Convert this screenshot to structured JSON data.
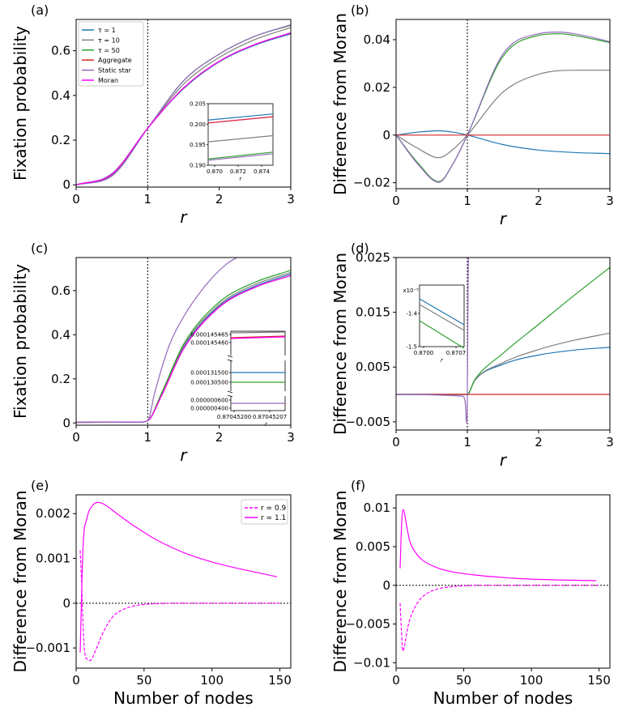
{
  "chart_data": [
    {
      "panel": "(a)",
      "type": "line",
      "xlabel": "r",
      "ylabel": "Fixation probability",
      "xlim": [
        0,
        3
      ],
      "ylim": [
        -0.01,
        0.74
      ],
      "xticks": [
        "0",
        "1",
        "2",
        "3"
      ],
      "yticks": [
        "0",
        "0.2",
        "0.4",
        "0.6"
      ],
      "legend_position": "top-left",
      "series": [
        {
          "name": "τ = 1",
          "color": "#1f77b4",
          "x": [
            0,
            0.5,
            1,
            1.5,
            2,
            2.5,
            3
          ],
          "y": [
            0,
            0.05,
            0.253,
            0.43,
            0.55,
            0.625,
            0.676
          ]
        },
        {
          "name": "τ = 10",
          "color": "#7f7f7f",
          "x": [
            0,
            0.5,
            1,
            1.5,
            2,
            2.5,
            3
          ],
          "y": [
            0,
            0.045,
            0.253,
            0.45,
            0.57,
            0.65,
            0.704
          ]
        },
        {
          "name": "τ = 50",
          "color": "#2ca02c",
          "x": [
            0,
            0.5,
            1,
            1.5,
            2,
            2.5,
            3
          ],
          "y": [
            0,
            0.04,
            0.253,
            0.465,
            0.585,
            0.665,
            0.714
          ]
        },
        {
          "name": "Aggregate",
          "color": "#d62728",
          "x": [
            0,
            0.5,
            1,
            1.5,
            2,
            2.5,
            3
          ],
          "y": [
            0,
            0.048,
            0.253,
            0.433,
            0.553,
            0.628,
            0.68
          ]
        },
        {
          "name": "Static star",
          "color": "#9467bd",
          "x": [
            0,
            0.5,
            1,
            1.5,
            2,
            2.5,
            3
          ],
          "y": [
            0,
            0.04,
            0.253,
            0.465,
            0.585,
            0.665,
            0.716
          ]
        },
        {
          "name": "Moran",
          "color": "#ff00ff",
          "x": [
            0,
            0.5,
            1,
            1.5,
            2,
            2.5,
            3
          ],
          "y": [
            0,
            0.048,
            0.253,
            0.433,
            0.553,
            0.628,
            0.68
          ]
        }
      ],
      "inset": {
        "xlabel": "r",
        "xlim": [
          0.87,
          0.8752
        ],
        "ylim": [
          0.19,
          0.205
        ],
        "xticks": [
          "0.870",
          "0.872",
          "0.874"
        ],
        "yticks": [
          "0.190",
          "0.195",
          "0.200",
          "0.205"
        ],
        "series": [
          {
            "color": "#1f77b4",
            "y": [
              0.201,
              0.2025
            ]
          },
          {
            "color": "#ff00ff",
            "y": [
              0.2003,
              0.2018
            ]
          },
          {
            "color": "#d62728",
            "y": [
              0.2003,
              0.2018
            ]
          },
          {
            "color": "#7f7f7f",
            "y": [
              0.1957,
              0.1972
            ]
          },
          {
            "color": "#2ca02c",
            "y": [
              0.1915,
              0.1932
            ]
          },
          {
            "color": "#9467bd",
            "y": [
              0.1912,
              0.1928
            ]
          }
        ]
      }
    },
    {
      "panel": "(b)",
      "type": "line",
      "xlabel": "r",
      "ylabel": "Difference from Moran",
      "xlim": [
        0,
        3
      ],
      "ylim": [
        -0.0225,
        0.0485
      ],
      "xticks": [
        "0",
        "1",
        "2",
        "3"
      ],
      "yticks": [
        "−0.02",
        "0",
        "0.02",
        "0.04"
      ],
      "series": [
        {
          "color": "#1f77b4",
          "x": [
            0,
            0.3,
            0.6,
            0.8,
            1,
            1.5,
            2,
            2.5,
            3
          ],
          "y": [
            0,
            0.0012,
            0.0018,
            0.0012,
            0,
            -0.004,
            -0.0063,
            -0.0073,
            -0.0078
          ]
        },
        {
          "color": "#7f7f7f",
          "x": [
            0,
            0.3,
            0.6,
            0.8,
            1,
            1.5,
            2,
            2.5,
            3
          ],
          "y": [
            0,
            -0.0055,
            -0.0095,
            -0.006,
            0,
            0.018,
            0.0255,
            0.0272,
            0.0272
          ]
        },
        {
          "color": "#2ca02c",
          "x": [
            0,
            0.3,
            0.6,
            0.8,
            1,
            1.5,
            2,
            2.3,
            2.5,
            3
          ],
          "y": [
            0,
            -0.0115,
            -0.0195,
            -0.012,
            0,
            0.033,
            0.0418,
            0.0425,
            0.0418,
            0.0388
          ]
        },
        {
          "color": "#9467bd",
          "x": [
            0,
            0.3,
            0.6,
            0.8,
            1,
            1.5,
            2,
            2.3,
            2.5,
            3
          ],
          "y": [
            0,
            -0.012,
            -0.0198,
            -0.012,
            0,
            0.034,
            0.0425,
            0.0432,
            0.0425,
            0.0392
          ]
        },
        {
          "color": "#d62728",
          "x": [
            0,
            3
          ],
          "y": [
            0,
            0
          ]
        }
      ]
    },
    {
      "panel": "(c)",
      "type": "line",
      "xlabel": "r",
      "ylabel": "Fixation probability",
      "xlim": [
        0,
        3
      ],
      "ylim": [
        -0.01,
        0.75
      ],
      "xticks": [
        "0",
        "1",
        "2",
        "3"
      ],
      "yticks": [
        "0",
        "0.2",
        "0.4",
        "0.6"
      ],
      "series": [
        {
          "color": "#1f77b4",
          "x": [
            0,
            0.9,
            1,
            1.2,
            1.5,
            2,
            2.5,
            3
          ],
          "y": [
            0.003,
            0.004,
            0.01,
            0.13,
            0.34,
            0.53,
            0.62,
            0.675
          ]
        },
        {
          "color": "#7f7f7f",
          "x": [
            0,
            0.9,
            1,
            1.2,
            1.5,
            2,
            2.5,
            3
          ],
          "y": [
            0.003,
            0.004,
            0.01,
            0.135,
            0.348,
            0.537,
            0.628,
            0.682
          ]
        },
        {
          "color": "#2ca02c",
          "x": [
            0,
            0.9,
            1,
            1.2,
            1.5,
            2,
            2.5,
            3
          ],
          "y": [
            0.003,
            0.004,
            0.01,
            0.14,
            0.356,
            0.548,
            0.638,
            0.692
          ]
        },
        {
          "color": "#d62728",
          "x": [
            0,
            0.9,
            1,
            1.2,
            1.5,
            2,
            2.5,
            3
          ],
          "y": [
            0.003,
            0.004,
            0.01,
            0.128,
            0.335,
            0.525,
            0.615,
            0.668
          ]
        },
        {
          "color": "#ff00ff",
          "x": [
            0,
            0.9,
            1,
            1.2,
            1.5,
            2,
            2.5,
            3
          ],
          "y": [
            0.003,
            0.004,
            0.01,
            0.128,
            0.335,
            0.525,
            0.615,
            0.668
          ]
        },
        {
          "color": "#9467bd",
          "x": [
            0,
            0.9,
            1,
            1.1,
            1.3,
            1.5,
            1.8,
            2.1,
            2.3
          ],
          "y": [
            0.003,
            0.004,
            0.01,
            0.14,
            0.35,
            0.48,
            0.62,
            0.72,
            0.76
          ]
        }
      ],
      "inset": {
        "xlabel": "r",
        "xticks": [
          "0.87045200",
          "0.87045207"
        ],
        "yticks_top": [
          "0.000145465",
          "0.000145460"
        ],
        "yticks_mid": [
          "0.000131500",
          "0.000130500"
        ],
        "yticks_bot": [
          "0.000000600",
          "0.000000400"
        ]
      }
    },
    {
      "panel": "(d)",
      "type": "line",
      "xlabel": "r",
      "ylabel": "Difference from Moran",
      "xlim": [
        0,
        3
      ],
      "ylim": [
        -0.0065,
        0.025
      ],
      "xticks": [
        "0",
        "1",
        "2",
        "3"
      ],
      "yticks": [
        "−0.005",
        "0.005",
        "0.015",
        "0.025"
      ],
      "series": [
        {
          "color": "#1f77b4",
          "x": [
            0,
            1,
            1.1,
            1.5,
            2,
            2.5,
            3
          ],
          "y": [
            0,
            0,
            0.0025,
            0.0055,
            0.0072,
            0.0081,
            0.0086
          ]
        },
        {
          "color": "#7f7f7f",
          "x": [
            0,
            1,
            1.1,
            1.5,
            2,
            2.5,
            3
          ],
          "y": [
            0,
            0,
            0.0025,
            0.0058,
            0.0082,
            0.0099,
            0.0112
          ]
        },
        {
          "color": "#2ca02c",
          "x": [
            0,
            1,
            1.1,
            1.5,
            2,
            2.5,
            3
          ],
          "y": [
            0,
            0,
            0.0026,
            0.0075,
            0.0128,
            0.0181,
            0.0232
          ]
        },
        {
          "color": "#d62728",
          "x": [
            0,
            3
          ],
          "y": [
            0,
            0
          ]
        },
        {
          "color": "#9467bd",
          "x": [
            0,
            0.93,
            0.97,
            0.99,
            1,
            1.01,
            1.02
          ],
          "y": [
            0,
            -0.0003,
            -0.0015,
            -0.0052,
            0.0,
            0.02,
            0.03
          ]
        }
      ],
      "inset": {
        "xlabel": "r",
        "exponent_label": "x10⁻⁵",
        "xticks": [
          "0.8700",
          "0.8707"
        ],
        "yticks": [
          "-1.4",
          "-1.5"
        ]
      }
    },
    {
      "panel": "(e)",
      "type": "line",
      "xlabel": "Number of nodes",
      "ylabel": "Difference from Moran",
      "xlim": [
        0,
        158
      ],
      "ylim": [
        -0.00145,
        0.00242
      ],
      "xticks": [
        "0",
        "50",
        "100",
        "150"
      ],
      "yticks": [
        "−0.001",
        "0",
        "0.001",
        "0.002"
      ],
      "legend_position": "top-right",
      "series": [
        {
          "name": "r = 0.9",
          "color": "#ff00ff",
          "dash": true,
          "x": [
            3,
            4,
            5,
            6,
            8,
            10,
            12,
            15,
            20,
            25,
            30,
            40,
            50,
            60,
            80,
            100,
            150
          ],
          "y": [
            0.00118,
            0.0005,
            -0.0004,
            -0.001,
            -0.00125,
            -0.00128,
            -0.00122,
            -0.001,
            -0.00065,
            -0.00038,
            -0.00022,
            -8e-05,
            -3e-05,
            -1e-05,
            0,
            0,
            0
          ]
        },
        {
          "name": "r = 1.1",
          "color": "#ff00ff",
          "x": [
            3,
            5,
            8,
            12,
            16,
            20,
            30,
            40,
            50,
            60,
            80,
            100,
            120,
            148
          ],
          "y": [
            -0.0011,
            0.0012,
            0.0019,
            0.00218,
            0.00225,
            0.00222,
            0.002,
            0.00178,
            0.00158,
            0.0014,
            0.00112,
            0.00092,
            0.00077,
            0.00059
          ]
        }
      ]
    },
    {
      "panel": "(f)",
      "type": "line",
      "xlabel": "Number of nodes",
      "ylabel": "Difference from Moran",
      "xlim": [
        0,
        158
      ],
      "ylim": [
        -0.0107,
        0.0117
      ],
      "xticks": [
        "0",
        "50",
        "100",
        "150"
      ],
      "yticks": [
        "−0.01",
        "−0.005",
        "0",
        "0.005",
        "0.01"
      ],
      "series": [
        {
          "color": "#ff00ff",
          "dash": true,
          "x": [
            3,
            4,
            5,
            6,
            8,
            10,
            15,
            20,
            30,
            40,
            60,
            80,
            100,
            150
          ],
          "y": [
            -0.0023,
            -0.006,
            -0.0085,
            -0.008,
            -0.006,
            -0.0045,
            -0.0025,
            -0.0014,
            -0.0005,
            -0.0002,
            0,
            0,
            0,
            0
          ]
        },
        {
          "color": "#ff00ff",
          "x": [
            3,
            4,
            5,
            6,
            8,
            10,
            15,
            20,
            30,
            40,
            60,
            80,
            100,
            148
          ],
          "y": [
            0.0022,
            0.0075,
            0.0098,
            0.0095,
            0.0075,
            0.0058,
            0.0041,
            0.0032,
            0.0023,
            0.0018,
            0.0013,
            0.001,
            0.0008,
            0.0006
          ]
        }
      ]
    }
  ]
}
